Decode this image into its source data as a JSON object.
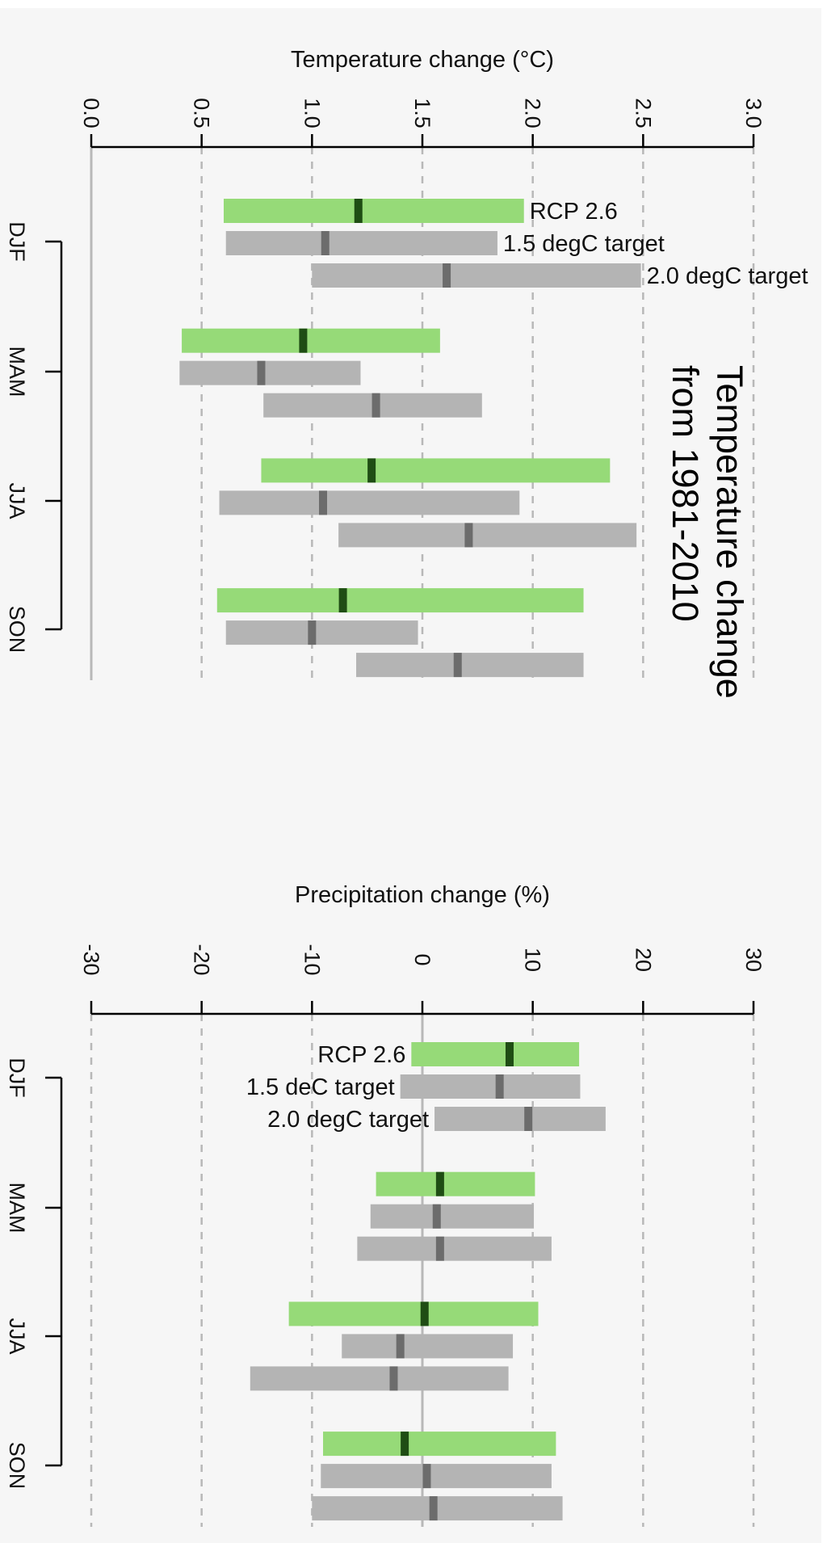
{
  "colors": {
    "background": "#f6f6f6",
    "rcp_bar": "#96da78",
    "rcp_median": "#1f4d14",
    "target_bar": "#b4b4b4",
    "target_median": "#6c6c6c",
    "grid": "#b8b8b8",
    "axis": "#000000"
  },
  "chart_data": [
    {
      "type": "bar",
      "orientation": "rotated 90 degrees clockwise",
      "title": "",
      "xlabel": "Temperature change (°C)",
      "ylabel": "",
      "xlim": [
        0.0,
        3.0
      ],
      "ticks": [
        "0.0",
        "0.5",
        "1.0",
        "1.5",
        "2.0",
        "2.5",
        "3.0"
      ],
      "tick_values": [
        0.0,
        0.5,
        1.0,
        1.5,
        2.0,
        2.5,
        3.0
      ],
      "grid": true,
      "zero_line": 0.0,
      "categories": [
        "DJF",
        "MAM",
        "JJA",
        "SON"
      ],
      "annotation": [
        "Temperature change",
        "from 1981-2010"
      ],
      "series": [
        {
          "name": "RCP 2.6",
          "low": [
            0.6,
            0.41,
            0.77,
            0.57
          ],
          "median": [
            1.21,
            0.96,
            1.27,
            1.14
          ],
          "high": [
            1.96,
            1.58,
            2.35,
            2.23
          ]
        },
        {
          "name": "1.5 degC target",
          "low": [
            0.61,
            0.4,
            0.58,
            0.61
          ],
          "median": [
            1.06,
            0.77,
            1.05,
            1.0
          ],
          "high": [
            1.84,
            1.22,
            1.94,
            1.48
          ]
        },
        {
          "name": "2.0 degC target",
          "low": [
            1.0,
            0.78,
            1.12,
            1.2
          ],
          "median": [
            1.61,
            1.29,
            1.71,
            1.66
          ],
          "high": [
            2.49,
            1.77,
            2.47,
            2.23
          ]
        }
      ]
    },
    {
      "type": "bar",
      "orientation": "rotated 90 degrees clockwise",
      "title": "",
      "xlabel": "Precipitation change (%)",
      "ylabel": "",
      "xlim": [
        -30,
        30
      ],
      "ticks": [
        "-30",
        "-20",
        "-10",
        "0",
        "10",
        "20",
        "30"
      ],
      "tick_values": [
        -30,
        -20,
        -10,
        0,
        10,
        20,
        30
      ],
      "grid": true,
      "zero_line": 0,
      "categories": [
        "DJF",
        "MAM",
        "JJA",
        "SON"
      ],
      "series": [
        {
          "name": "RCP 2.6",
          "low": [
            -1.0,
            -4.2,
            -12.1,
            -9.0
          ],
          "median": [
            7.9,
            1.6,
            0.2,
            -1.6
          ],
          "high": [
            14.2,
            10.2,
            10.5,
            12.1
          ]
        },
        {
          "name": "1.5 deC target",
          "low": [
            -2.0,
            -4.7,
            -7.3,
            -9.2
          ],
          "median": [
            7.0,
            1.3,
            -2.0,
            0.4
          ],
          "high": [
            14.3,
            10.1,
            8.2,
            11.7
          ]
        },
        {
          "name": "2.0 degC target",
          "low": [
            1.1,
            -5.9,
            -15.6,
            -10.0
          ],
          "median": [
            9.6,
            1.6,
            -2.6,
            1.0
          ],
          "high": [
            16.6,
            11.7,
            7.8,
            12.7
          ]
        }
      ]
    }
  ]
}
